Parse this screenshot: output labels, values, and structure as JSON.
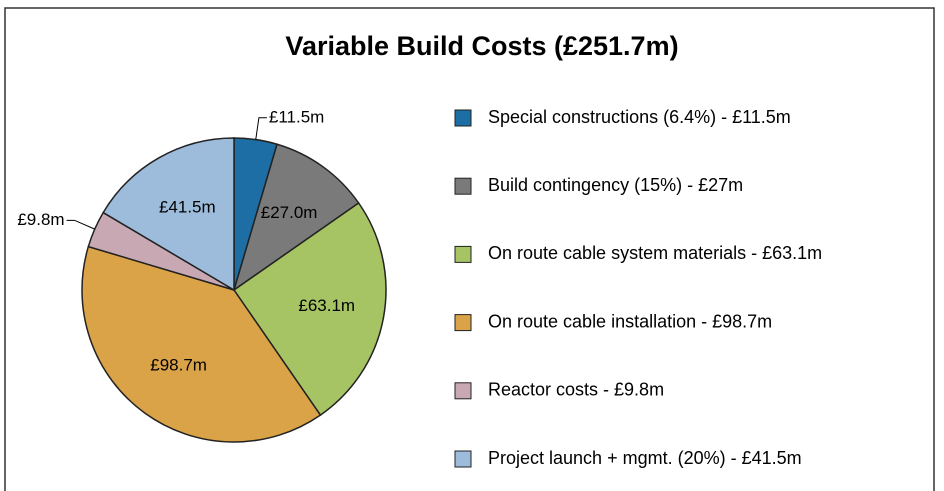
{
  "chart_data": {
    "type": "pie",
    "title": "Variable Build Costs (£251.7m)",
    "categories": [
      "Special constructions (6.4%) - £11.5m",
      "Build contingency (15%) - £27m",
      "On route cable system materials - £63.1m",
      "On route cable installation - £98.7m",
      "Reactor costs  - £9.8m",
      "Project launch + mgmt. (20%) - £41.5m"
    ],
    "values": [
      11.5,
      27.0,
      63.1,
      98.7,
      9.8,
      41.5
    ],
    "value_labels": [
      "£11.5m",
      "£27.0m",
      "£63.1m",
      "£98.7m",
      "£9.8m",
      "£41.5m"
    ],
    "colors": [
      "#1c6ea4",
      "#7a7a7a",
      "#a6c464",
      "#dba348",
      "#c8a9b3",
      "#9dbcdb"
    ],
    "legend": "right"
  }
}
